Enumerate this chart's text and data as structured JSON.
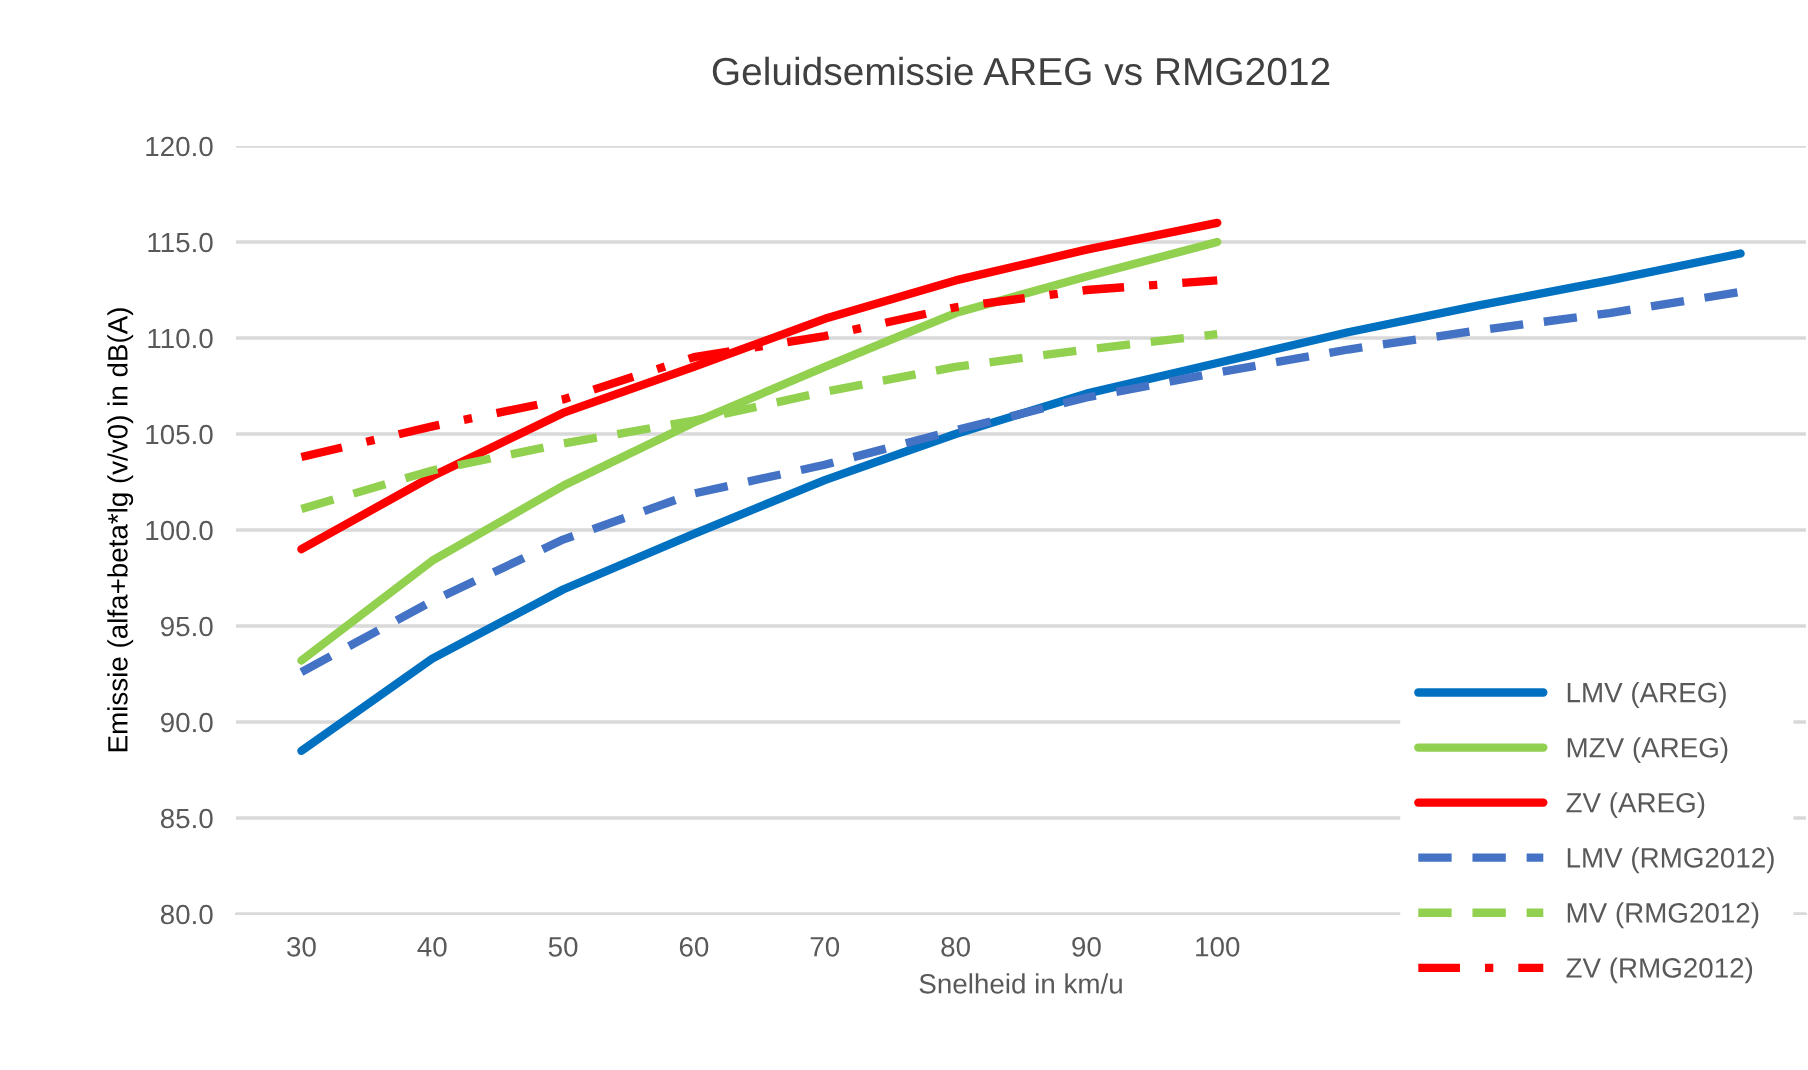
{
  "chart_data": {
    "type": "line",
    "title": "Geluidsemissie AREG vs RMG2012",
    "xlabel": "Snelheid in km/u",
    "ylabel": "Emissie (alfa+beta*lg (v/v0) in dB(A)",
    "categories": [
      "30",
      "40",
      "50",
      "60",
      "70",
      "80",
      "90",
      "100",
      null,
      null,
      null,
      null
    ],
    "series": [
      {
        "name": "LMV (AREG)",
        "color": "#0070c0",
        "line_style": "solid",
        "values": [
          88.5,
          93.3,
          96.9,
          99.8,
          102.6,
          105.0,
          107.1,
          108.7,
          110.3,
          111.7,
          113.0,
          114.4
        ]
      },
      {
        "name": "MZV (AREG)",
        "color": "#92d050",
        "line_style": "solid",
        "values": [
          93.2,
          98.4,
          102.3,
          105.6,
          108.5,
          111.3,
          113.2,
          115.0,
          null,
          null,
          null,
          null
        ]
      },
      {
        "name": "ZV (AREG)",
        "color": "#ff0000",
        "line_style": "solid",
        "values": [
          99.0,
          102.8,
          106.1,
          108.5,
          111.0,
          113.0,
          114.6,
          116.0,
          null,
          null,
          null,
          null
        ]
      },
      {
        "name": "LMV (RMG2012)",
        "color": "#4472c4",
        "line_style": "dashed",
        "values": [
          92.6,
          96.3,
          99.5,
          101.9,
          103.4,
          105.2,
          106.9,
          108.2,
          109.4,
          110.4,
          111.3,
          112.4
        ]
      },
      {
        "name": "MV (RMG2012)",
        "color": "#92d050",
        "line_style": "dashed",
        "values": [
          101.1,
          103.1,
          104.5,
          105.7,
          107.2,
          108.5,
          109.4,
          110.2,
          null,
          null,
          null,
          null
        ]
      },
      {
        "name": "ZV (RMG2012)",
        "color": "#ff0000",
        "line_style": "dashdot",
        "values": [
          103.8,
          105.4,
          106.8,
          109.0,
          110.1,
          111.6,
          112.5,
          113.0,
          null,
          null,
          null,
          null
        ]
      }
    ],
    "ylim": [
      80,
      120
    ],
    "yticks": [
      {
        "value": 80,
        "label": "80.0"
      },
      {
        "value": 85,
        "label": "85.0"
      },
      {
        "value": 90,
        "label": "90.0"
      },
      {
        "value": 95,
        "label": "95.0"
      },
      {
        "value": 100,
        "label": "100.0"
      },
      {
        "value": 105,
        "label": "105.0"
      },
      {
        "value": 110,
        "label": "110.0"
      },
      {
        "value": 115,
        "label": "115.0"
      },
      {
        "value": 120,
        "label": "120.0"
      }
    ],
    "grid": "y",
    "legend": "bottom right"
  }
}
